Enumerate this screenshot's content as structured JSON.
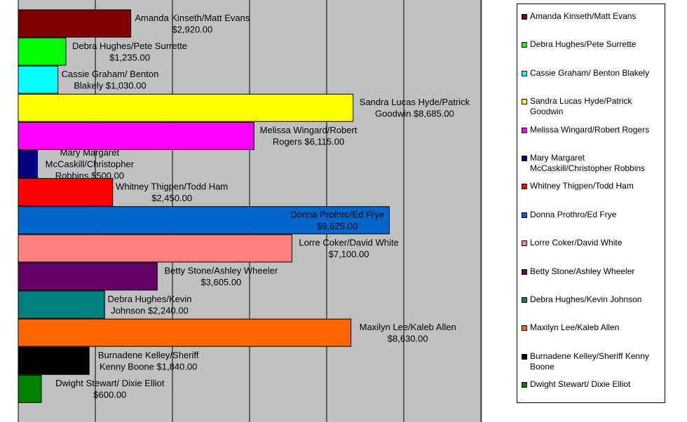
{
  "chart_data": {
    "type": "bar",
    "orientation": "horizontal",
    "grid": true,
    "legend_placement": "right",
    "plot_background": "#c0c0c0",
    "xlim": [
      0,
      12000
    ],
    "x_gridline_step": 2000,
    "categories": [
      {
        "name": "Amanda Kinseth/Matt Evans",
        "value": 2920,
        "label_lines": [
          "Amanda Kinseth/Matt Evans",
          "$2,920.00"
        ],
        "color": "#800000"
      },
      {
        "name": "Debra Hughes/Pete Surrette",
        "value": 1235,
        "label_lines": [
          "Debra Hughes/Pete Surrette",
          "$1,235.00"
        ],
        "color": "#00ff00"
      },
      {
        "name": "Cassie Graham/ Benton Blakely",
        "value": 1030,
        "label_lines": [
          "Cassie Graham/ Benton",
          "Blakely $1,030.00"
        ],
        "color": "#00ffff"
      },
      {
        "name": "Sandra Lucas Hyde/Patrick Goodwin",
        "value": 8685,
        "label_lines": [
          "Sandra Lucas Hyde/Patrick",
          "Goodwin    $8,685.00"
        ],
        "color": "#ffff00"
      },
      {
        "name": "Melissa Wingard/Robert Rogers",
        "value": 6115,
        "label_lines": [
          "Melissa Wingard/Robert",
          "Rogers  $6,115.00"
        ],
        "color": "#ff00ff"
      },
      {
        "name": "Mary Margaret McCaskill/Christopher Robbins",
        "value": 500,
        "label_lines": [
          "Mary Margaret",
          "McCaskill/Christopher",
          "Robbins  $500.00"
        ],
        "color": "#000080"
      },
      {
        "name": "Whitney Thigpen/Todd Ham",
        "value": 2450,
        "label_lines": [
          "Whitney Thigpen/Todd Ham",
          "$2,450.00"
        ],
        "color": "#ff0000"
      },
      {
        "name": "Donna Prothro/Ed Frye",
        "value": 9625,
        "label_lines": [
          "Donna Prothro/Ed Frye",
          "$9,625.00"
        ],
        "color": "#0066cc"
      },
      {
        "name": "Lorre Coker/David White",
        "value": 7100,
        "label_lines": [
          "Lorre Coker/David White",
          "$7,100.00"
        ],
        "color": "#ff8080"
      },
      {
        "name": "Betty Stone/Ashley Wheeler",
        "value": 3605,
        "label_lines": [
          "Betty Stone/Ashley Wheeler",
          "$3,605.00"
        ],
        "color": "#660066"
      },
      {
        "name": "Debra Hughes/Kevin Johnson",
        "value": 2240,
        "label_lines": [
          "Debra Hughes/Kevin",
          "Johnson $2,240.00"
        ],
        "color": "#008080"
      },
      {
        "name": "Maxilyn Lee/Kaleb Allen",
        "value": 8630,
        "label_lines": [
          "Maxilyn Lee/Kaleb Allen",
          "$8,630.00"
        ],
        "color": "#ff6600"
      },
      {
        "name": "Burnadene Kelley/Sheriff Kenny Boone",
        "value": 1840,
        "label_lines": [
          "Burnadene Kelley/Sheriff",
          "Kenny Boone $1,840.00"
        ],
        "color": "#000000"
      },
      {
        "name": "Dwight Stewart/ Dixie Elliot",
        "value": 600,
        "label_lines": [
          "Dwight Stewart/ Dixie Elliot",
          "$600.00"
        ],
        "color": "#008000"
      }
    ]
  },
  "legend": {
    "items": [
      {
        "label": "Amanda Kinseth/Matt Evans",
        "color": "#800000"
      },
      {
        "label": "Debra Hughes/Pete Surrette",
        "color": "#00ff00"
      },
      {
        "label": "Cassie Graham/ Benton Blakely",
        "color": "#00ffff"
      },
      {
        "label": "Sandra Lucas Hyde/Patrick Goodwin",
        "color": "#ffff00"
      },
      {
        "label": "Melissa Wingard/Robert Rogers",
        "color": "#ff00ff"
      },
      {
        "label": "Mary Margaret McCaskill/Christopher Robbins",
        "color": "#000080"
      },
      {
        "label": "Whitney Thigpen/Todd Ham",
        "color": "#ff0000"
      },
      {
        "label": "Donna Prothro/Ed Frye",
        "color": "#0066cc"
      },
      {
        "label": "Lorre Coker/David White",
        "color": "#ff8080"
      },
      {
        "label": "Betty Stone/Ashley Wheeler",
        "color": "#660066"
      },
      {
        "label": "Debra Hughes/Kevin Johnson",
        "color": "#008080"
      },
      {
        "label": "Maxilyn Lee/Kaleb Allen",
        "color": "#ff6600"
      },
      {
        "label": "Burnadene Kelley/Sheriff Kenny Boone",
        "color": "#000000"
      },
      {
        "label": "Dwight Stewart/ Dixie Elliot",
        "color": "#008000"
      }
    ]
  }
}
